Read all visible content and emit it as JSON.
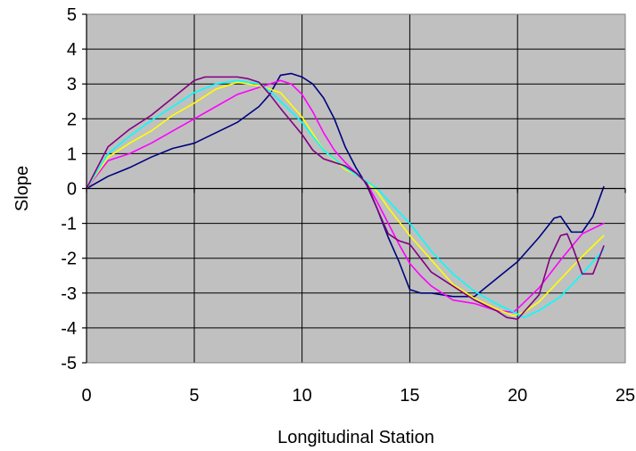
{
  "chart_data": {
    "type": "line",
    "xlabel": "Longitudinal Station",
    "ylabel": "Slope",
    "xlim": [
      0,
      25
    ],
    "ylim": [
      -5,
      5
    ],
    "x_ticks": [
      0,
      5,
      10,
      15,
      20,
      25
    ],
    "y_ticks": [
      5,
      4,
      3,
      2,
      1,
      0,
      -1,
      -2,
      -3,
      -4,
      -5
    ],
    "grid": true,
    "plot_background": "#c0c0c0",
    "series": [
      {
        "color": "#000080",
        "points": [
          [
            0,
            0
          ],
          [
            1,
            0.35
          ],
          [
            2,
            0.6
          ],
          [
            3,
            0.9
          ],
          [
            4,
            1.15
          ],
          [
            5,
            1.3
          ],
          [
            6,
            1.6
          ],
          [
            7,
            1.9
          ],
          [
            8,
            2.35
          ],
          [
            8.5,
            2.7
          ],
          [
            9,
            3.25
          ],
          [
            9.5,
            3.3
          ],
          [
            10,
            3.2
          ],
          [
            10.5,
            3.0
          ],
          [
            11,
            2.6
          ],
          [
            11.5,
            2.0
          ],
          [
            12,
            1.2
          ],
          [
            12.5,
            0.6
          ],
          [
            13,
            0.1
          ],
          [
            13.5,
            -0.6
          ],
          [
            14,
            -1.4
          ],
          [
            14.5,
            -2.1
          ],
          [
            15,
            -2.9
          ],
          [
            15.5,
            -3.0
          ],
          [
            16,
            -3.0
          ],
          [
            17,
            -3.1
          ],
          [
            18,
            -3.1
          ],
          [
            19,
            -2.6
          ],
          [
            20,
            -2.1
          ],
          [
            21,
            -1.4
          ],
          [
            21.7,
            -0.85
          ],
          [
            22,
            -0.8
          ],
          [
            22.5,
            -1.25
          ],
          [
            23,
            -1.25
          ],
          [
            23.5,
            -0.8
          ],
          [
            24,
            0.05
          ]
        ]
      },
      {
        "color": "#ff00ff",
        "points": [
          [
            0,
            0
          ],
          [
            1,
            0.8
          ],
          [
            2,
            1.0
          ],
          [
            3,
            1.3
          ],
          [
            4,
            1.65
          ],
          [
            5,
            2.0
          ],
          [
            6,
            2.35
          ],
          [
            7,
            2.7
          ],
          [
            8,
            2.9
          ],
          [
            9,
            3.1
          ],
          [
            9.5,
            3.0
          ],
          [
            10,
            2.7
          ],
          [
            10.5,
            2.2
          ],
          [
            11,
            1.6
          ],
          [
            11.5,
            1.1
          ],
          [
            12,
            0.75
          ],
          [
            12.5,
            0.45
          ],
          [
            13,
            0.15
          ],
          [
            13.5,
            -0.4
          ],
          [
            14,
            -1.0
          ],
          [
            14.5,
            -1.6
          ],
          [
            15,
            -2.15
          ],
          [
            15.5,
            -2.5
          ],
          [
            16,
            -2.8
          ],
          [
            17,
            -3.2
          ],
          [
            18,
            -3.3
          ],
          [
            19,
            -3.5
          ],
          [
            19.8,
            -3.55
          ],
          [
            20,
            -3.45
          ],
          [
            21,
            -2.85
          ],
          [
            22,
            -2.05
          ],
          [
            23,
            -1.3
          ],
          [
            24,
            -1.0
          ]
        ]
      },
      {
        "color": "#ffff00",
        "points": [
          [
            0,
            0
          ],
          [
            1,
            0.9
          ],
          [
            2,
            1.3
          ],
          [
            3,
            1.65
          ],
          [
            4,
            2.1
          ],
          [
            5,
            2.45
          ],
          [
            6,
            2.85
          ],
          [
            7,
            3.05
          ],
          [
            8,
            2.95
          ],
          [
            9,
            2.75
          ],
          [
            10,
            2.05
          ],
          [
            11,
            1.1
          ],
          [
            12,
            0.55
          ],
          [
            12.5,
            0.4
          ],
          [
            13,
            0.2
          ],
          [
            13.5,
            -0.1
          ],
          [
            14,
            -0.55
          ],
          [
            15,
            -1.35
          ],
          [
            16,
            -2.05
          ],
          [
            17,
            -2.75
          ],
          [
            18,
            -3.15
          ],
          [
            19,
            -3.45
          ],
          [
            19.8,
            -3.65
          ],
          [
            20.3,
            -3.55
          ],
          [
            21,
            -3.25
          ],
          [
            22,
            -2.6
          ],
          [
            23,
            -1.95
          ],
          [
            24,
            -1.35
          ]
        ]
      },
      {
        "color": "#00ffff",
        "points": [
          [
            0,
            0
          ],
          [
            1,
            1.0
          ],
          [
            2,
            1.5
          ],
          [
            3,
            1.95
          ],
          [
            4,
            2.35
          ],
          [
            5,
            2.75
          ],
          [
            6,
            3.0
          ],
          [
            7,
            3.1
          ],
          [
            8,
            3.0
          ],
          [
            8.5,
            2.8
          ],
          [
            9,
            2.5
          ],
          [
            10,
            1.9
          ],
          [
            11,
            1.1
          ],
          [
            12,
            0.6
          ],
          [
            12.5,
            0.4
          ],
          [
            13,
            0.2
          ],
          [
            13.5,
            0.0
          ],
          [
            14,
            -0.35
          ],
          [
            15,
            -1.0
          ],
          [
            16,
            -1.8
          ],
          [
            17,
            -2.45
          ],
          [
            18,
            -2.95
          ],
          [
            19,
            -3.3
          ],
          [
            20,
            -3.6
          ],
          [
            20.3,
            -3.7
          ],
          [
            21,
            -3.5
          ],
          [
            22,
            -3.1
          ],
          [
            23,
            -2.45
          ],
          [
            24,
            -1.75
          ]
        ]
      },
      {
        "color": "#800080",
        "points": [
          [
            0,
            0
          ],
          [
            1,
            1.2
          ],
          [
            2,
            1.7
          ],
          [
            3,
            2.1
          ],
          [
            4,
            2.6
          ],
          [
            5,
            3.1
          ],
          [
            5.5,
            3.2
          ],
          [
            6,
            3.2
          ],
          [
            7,
            3.2
          ],
          [
            7.5,
            3.15
          ],
          [
            8,
            3.05
          ],
          [
            8.5,
            2.7
          ],
          [
            9,
            2.3
          ],
          [
            10,
            1.55
          ],
          [
            10.5,
            1.1
          ],
          [
            11,
            0.85
          ],
          [
            11.5,
            0.75
          ],
          [
            12,
            0.65
          ],
          [
            12.5,
            0.45
          ],
          [
            13,
            0.15
          ],
          [
            13.5,
            -0.6
          ],
          [
            14,
            -1.3
          ],
          [
            14.5,
            -1.5
          ],
          [
            15,
            -1.6
          ],
          [
            15.5,
            -2.0
          ],
          [
            16,
            -2.4
          ],
          [
            17,
            -2.8
          ],
          [
            18,
            -3.2
          ],
          [
            19,
            -3.5
          ],
          [
            19.5,
            -3.7
          ],
          [
            20,
            -3.75
          ],
          [
            21,
            -3.05
          ],
          [
            21.5,
            -2.0
          ],
          [
            22,
            -1.35
          ],
          [
            22.3,
            -1.3
          ],
          [
            22.6,
            -1.75
          ],
          [
            23,
            -2.45
          ],
          [
            23.5,
            -2.45
          ],
          [
            24,
            -1.65
          ]
        ]
      }
    ]
  }
}
